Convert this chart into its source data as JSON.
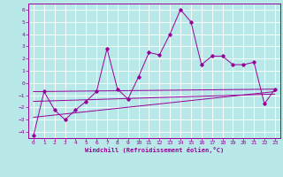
{
  "xlabel": "Windchill (Refroidissement éolien,°C)",
  "xlim": [
    -0.5,
    23.5
  ],
  "ylim": [
    -4.5,
    6.5
  ],
  "xticks": [
    0,
    1,
    2,
    3,
    4,
    5,
    6,
    7,
    8,
    9,
    10,
    11,
    12,
    13,
    14,
    15,
    16,
    17,
    18,
    19,
    20,
    21,
    22,
    23
  ],
  "yticks": [
    -4,
    -3,
    -2,
    -1,
    0,
    1,
    2,
    3,
    4,
    5,
    6
  ],
  "bg_color": "#b8e8e8",
  "line_color": "#990099",
  "grid_color": "#ffffff",
  "series1": {
    "x": [
      0,
      1,
      2,
      3,
      4,
      5,
      6,
      7,
      8,
      9,
      10,
      11,
      12,
      13,
      14,
      15,
      16,
      17,
      18,
      19,
      20,
      21,
      22,
      23
    ],
    "y": [
      -4.3,
      -0.7,
      -2.2,
      -3.0,
      -2.2,
      -1.5,
      -0.7,
      2.8,
      -0.5,
      -1.3,
      0.5,
      2.5,
      2.3,
      4.0,
      6.0,
      5.0,
      1.5,
      2.2,
      2.2,
      1.5,
      1.5,
      1.7,
      -1.7,
      -0.5
    ]
  },
  "series2": {
    "x": [
      0,
      23
    ],
    "y": [
      -0.7,
      -0.5
    ]
  },
  "series3": {
    "x": [
      0,
      23
    ],
    "y": [
      -1.5,
      -0.9
    ]
  },
  "series4": {
    "x": [
      0,
      23
    ],
    "y": [
      -2.8,
      -0.7
    ]
  }
}
